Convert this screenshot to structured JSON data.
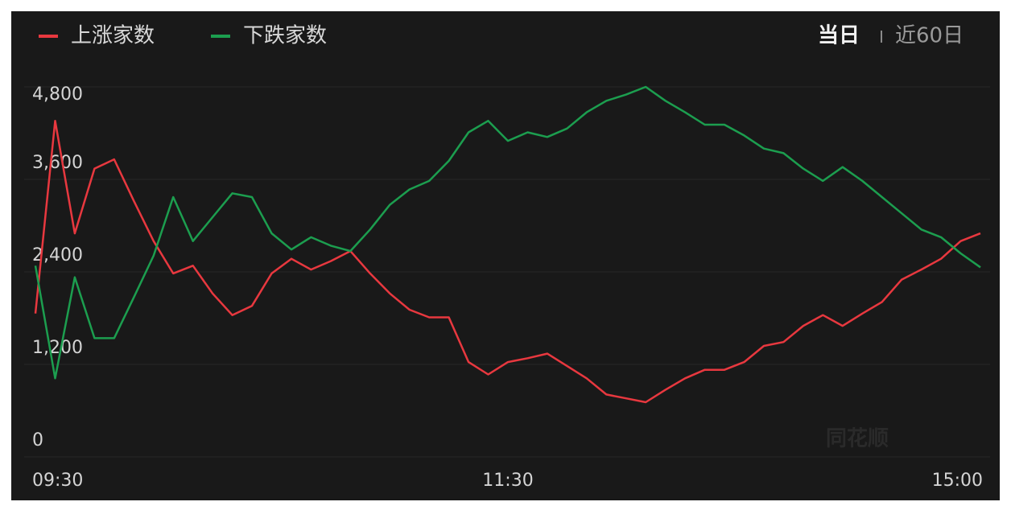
{
  "chart_data": {
    "type": "line",
    "tabs": [
      "当日",
      "近60日"
    ],
    "watermark": "同花顺",
    "categories": [
      "09:30",
      null,
      null,
      null,
      null,
      null,
      null,
      null,
      null,
      null,
      null,
      null,
      null,
      null,
      null,
      null,
      null,
      null,
      null,
      null,
      null,
      null,
      null,
      null,
      "11:30",
      null,
      null,
      null,
      null,
      null,
      null,
      null,
      null,
      null,
      null,
      null,
      null,
      null,
      null,
      null,
      null,
      null,
      null,
      null,
      null,
      null,
      null,
      null,
      "15:00"
    ],
    "series": [
      {
        "name": "上涨家数",
        "color": "#e8383f",
        "values": [
          1860,
          4360,
          2900,
          3740,
          3860,
          3320,
          2800,
          2380,
          2480,
          2120,
          1840,
          1960,
          2380,
          2570,
          2430,
          2540,
          2670,
          2380,
          2120,
          1910,
          1810,
          1810,
          1230,
          1070,
          1230,
          1280,
          1340,
          1180,
          1020,
          810,
          760,
          710,
          870,
          1020,
          1130,
          1130,
          1230,
          1440,
          1490,
          1700,
          1840,
          1700,
          1860,
          2010,
          2300,
          2430,
          2570,
          2800,
          2900
        ]
      },
      {
        "name": "下跌家数",
        "color": "#1c9e4f",
        "values": [
          2480,
          1020,
          2330,
          1540,
          1540,
          2070,
          2610,
          3370,
          2800,
          3110,
          3420,
          3370,
          2900,
          2690,
          2850,
          2740,
          2670,
          2950,
          3270,
          3470,
          3580,
          3840,
          4210,
          4360,
          4100,
          4210,
          4150,
          4260,
          4470,
          4620,
          4700,
          4800,
          4620,
          4470,
          4310,
          4310,
          4170,
          4000,
          3940,
          3740,
          3580,
          3760,
          3580,
          3370,
          3160,
          2950,
          2850,
          2640,
          2460
        ]
      }
    ],
    "ylim": [
      0,
      4800
    ],
    "yticks": [
      0,
      {
        "value": 1200,
        "label": "1,200"
      },
      {
        "value": 2400,
        "label": "2,400"
      },
      {
        "value": 3600,
        "label": "3,600"
      },
      {
        "value": 4800,
        "label": "4,800"
      }
    ],
    "grid": true
  }
}
